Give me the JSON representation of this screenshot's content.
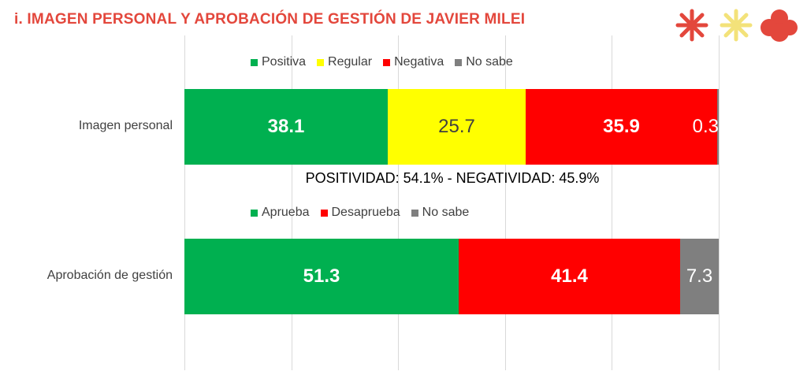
{
  "page_title": "i. IMAGEN PERSONAL Y APROBACIÓN DE GESTIÓN DE JAVIER MILEI",
  "logo": {
    "colors": [
      "#E3473C",
      "#F3E27A",
      "#E3473C"
    ]
  },
  "chart_data": [
    {
      "type": "bar",
      "orientation": "horizontal",
      "stacked": true,
      "categories": [
        "Imagen personal"
      ],
      "series": [
        {
          "name": "Positiva",
          "color": "#00B050",
          "values": [
            38.1
          ],
          "label_color": "#FFFFFF",
          "label_bold": true
        },
        {
          "name": "Regular",
          "color": "#FFFF00",
          "values": [
            25.7
          ],
          "label_color": "#404040",
          "label_bold": false
        },
        {
          "name": "Negativa",
          "color": "#FF0000",
          "values": [
            35.9
          ],
          "label_color": "#FFFFFF",
          "label_bold": true
        },
        {
          "name": "No sabe",
          "color": "#7F7F7F",
          "values": [
            0.3
          ],
          "label_color": "#FFFFFF",
          "label_bold": false
        }
      ],
      "xlim": [
        0,
        100
      ],
      "grid": true,
      "legend_position": "top",
      "annotation": "POSITIVIDAD: 54.1% - NEGATIVIDAD: 45.9%"
    },
    {
      "type": "bar",
      "orientation": "horizontal",
      "stacked": true,
      "categories": [
        "Aprobación de gestión"
      ],
      "series": [
        {
          "name": "Aprueba",
          "color": "#00B050",
          "values": [
            51.3
          ],
          "label_color": "#FFFFFF",
          "label_bold": true
        },
        {
          "name": "Desaprueba",
          "color": "#FF0000",
          "values": [
            41.4
          ],
          "label_color": "#FFFFFF",
          "label_bold": true
        },
        {
          "name": "No sabe",
          "color": "#7F7F7F",
          "values": [
            7.3
          ],
          "label_color": "#FFFFFF",
          "label_bold": false
        }
      ],
      "xlim": [
        0,
        100
      ],
      "grid": true,
      "legend_position": "top"
    }
  ]
}
